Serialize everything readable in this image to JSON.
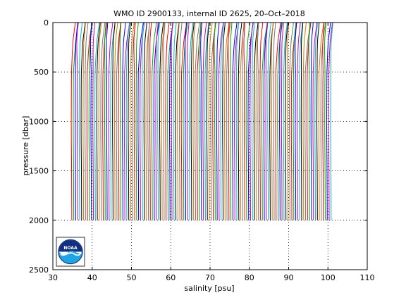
{
  "chart_data": {
    "type": "line",
    "title": "WMO ID 2900133, internal ID 2625, 20–Oct–2018",
    "xlabel": "salinity [psu]",
    "ylabel": "pressure [dbar]",
    "xlim": [
      30,
      110
    ],
    "ylim": [
      0,
      2500
    ],
    "y_reversed": true,
    "xticks": [
      30,
      40,
      50,
      60,
      70,
      80,
      90,
      100,
      110
    ],
    "yticks": [
      0,
      500,
      1000,
      1500,
      2000,
      2500
    ],
    "grid": true,
    "grid_style": "dotted",
    "profile_offset_step_psu": 0.5,
    "profile_base_salinity": 34.9,
    "profile_count": 133,
    "profile_max_pressure": 2000,
    "pressure_levels": [
      0,
      25,
      50,
      75,
      100,
      150,
      200,
      250,
      300,
      400,
      500,
      600,
      800,
      1000,
      1200,
      1400,
      1600,
      1800,
      2000
    ],
    "profile_shape_psu": [
      0.55,
      0.5,
      0.45,
      0.35,
      0.3,
      0.15,
      0.05,
      0.0,
      -0.05,
      -0.1,
      -0.15,
      -0.18,
      -0.2,
      -0.22,
      -0.2,
      -0.15,
      -0.12,
      -0.1,
      -0.08
    ],
    "series_colors": [
      "#ff0000",
      "#00aa00",
      "#0000ff",
      "#cc00cc",
      "#00bbbb",
      "#000000",
      "#dd7700",
      "#777777"
    ]
  },
  "logo": {
    "text": "NOAA"
  }
}
